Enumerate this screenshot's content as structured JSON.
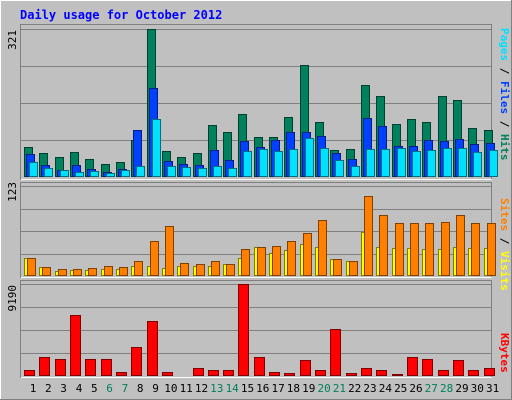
{
  "colors": {
    "background": "#C0C0C0",
    "title": "#0000FF",
    "grid": "#808080",
    "hits": "#00805C",
    "files": "#0040FF",
    "pages": "#00E0FF",
    "visits": "#FFFF00",
    "sites": "#FF8000",
    "kbytes": "#FF0000",
    "weekend_day": "#00805C",
    "weekday": "#000000"
  },
  "chart_data": {
    "type": "bar",
    "title": "Daily usage for October 2012",
    "categories": [
      "1",
      "2",
      "3",
      "4",
      "5",
      "6",
      "7",
      "8",
      "9",
      "10",
      "11",
      "12",
      "13",
      "14",
      "15",
      "16",
      "17",
      "18",
      "19",
      "20",
      "21",
      "22",
      "23",
      "24",
      "25",
      "26",
      "27",
      "28",
      "29",
      "30",
      "31"
    ],
    "weekend_days": [
      "6",
      "7",
      "13",
      "14",
      "20",
      "21",
      "27",
      "28"
    ],
    "panels": [
      {
        "id": "hits-files-pages",
        "ymax_label": "321",
        "ymax": 321,
        "legend": [
          {
            "text": "Pages",
            "color": "#00E0FF"
          },
          {
            "text": " / ",
            "color": "#000000"
          },
          {
            "text": "Files",
            "color": "#0040FF"
          },
          {
            "text": " / ",
            "color": "#000000"
          },
          {
            "text": "Hits",
            "color": "#00805C"
          }
        ],
        "series": [
          {
            "name": "Hits",
            "values": [
              64,
              53,
              44,
              55,
              39,
              29,
              33,
              81,
              321,
              57,
              44,
              51,
              113,
              97,
              136,
              87,
              86,
              130,
              244,
              119,
              59,
              61,
              200,
              175,
              115,
              125,
              120,
              176,
              167,
              106,
              102
            ]
          },
          {
            "name": "Files",
            "values": [
              50,
              27,
              15,
              26,
              17,
              10,
              17,
              103,
              192,
              35,
              28,
              26,
              59,
              37,
              79,
              66,
              81,
              97,
              98,
              89,
              51,
              40,
              129,
              110,
              68,
              68,
              81,
              79,
              83,
              71,
              74
            ]
          },
          {
            "name": "Pages",
            "values": [
              32,
              20,
              15,
              11,
              13,
              9,
              15,
              24,
              125,
              23,
              21,
              20,
              24,
              19,
              57,
              61,
              57,
              61,
              85,
              63,
              37,
              24,
              61,
              61,
              62,
              57,
              58,
              62,
              62,
              54,
              58
            ]
          }
        ]
      },
      {
        "id": "visits-sites",
        "ymax_label": "123",
        "ymax": 123,
        "legend": [
          {
            "text": "Sites",
            "color": "#FF8000"
          },
          {
            "text": " / ",
            "color": "#000000"
          },
          {
            "text": "Visits",
            "color": "#FFFF00"
          }
        ],
        "series": [
          {
            "name": "Visits",
            "values": [
              25,
              12,
              7,
              8,
              8,
              10,
              10,
              13,
              14,
              11,
              13,
              13,
              13,
              17,
              25,
              40,
              32,
              35,
              44,
              39,
              23,
              20,
              60,
              40,
              38,
              38,
              37,
              37,
              39,
              38,
              38
            ]
          },
          {
            "name": "Sites",
            "values": [
              25,
              12,
              9,
              9,
              11,
              13,
              12,
              21,
              48,
              69,
              18,
              17,
              20,
              17,
              37,
              40,
              41,
              48,
              59,
              76,
              23,
              21,
              109,
              84,
              72,
              73,
              72,
              74,
              83,
              73,
              72
            ]
          }
        ]
      },
      {
        "id": "kbytes",
        "ymax_label": "9190",
        "ymax": 9190,
        "legend": [
          {
            "text": "KBytes",
            "color": "#FF0000"
          }
        ],
        "series": [
          {
            "name": "KBytes",
            "values": [
              600,
              1900,
              1700,
              6100,
              1700,
              1700,
              400,
              2900,
              5500,
              400,
              100,
              800,
              600,
              600,
              9190,
              1900,
              350,
              300,
              1600,
              550,
              4700,
              300,
              800,
              550,
              200,
              1900,
              1700,
              550,
              1600,
              550,
              800
            ]
          }
        ]
      }
    ]
  }
}
